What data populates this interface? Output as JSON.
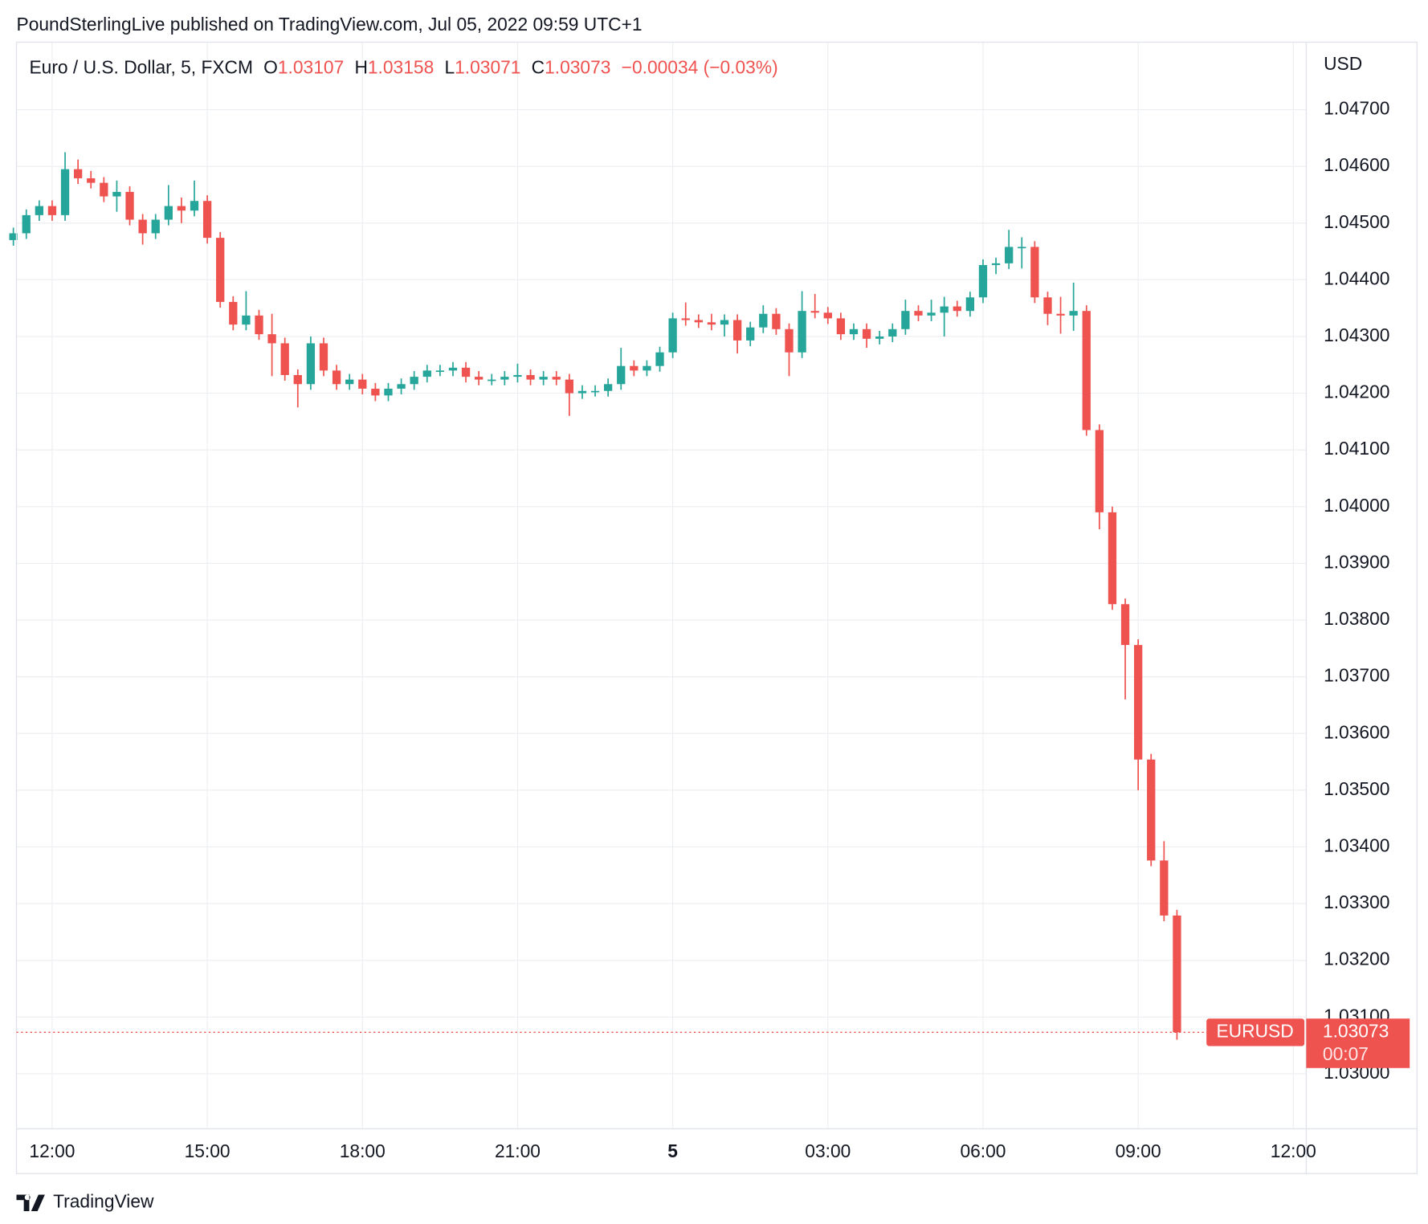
{
  "header": {
    "text": "PoundSterlingLive published on TradingView.com, Jul 05, 2022 09:59 UTC+1"
  },
  "footer": {
    "brand": "TradingView"
  },
  "chart_data": {
    "type": "candlestick",
    "legend": {
      "symbol": "Euro / U.S. Dollar, 5, FXCM",
      "open_label": "O",
      "open": 1.03107,
      "high_label": "H",
      "high": 1.03158,
      "low_label": "L",
      "low": 1.03071,
      "close_label": "C",
      "close": 1.03073,
      "change": "−0.00034 (−0.03%)"
    },
    "y_axis_label": "USD",
    "price_tag": {
      "name": "EURUSD",
      "countdown": "00:07"
    },
    "up_color": "#26a69a",
    "down_color": "#ef5350",
    "grid": true,
    "xlim": [
      11.31,
      36.25
    ],
    "ylim": [
      1.02903,
      1.04819
    ],
    "xticks": [
      {
        "value": 12,
        "label": "12:00"
      },
      {
        "value": 15,
        "label": "15:00"
      },
      {
        "value": 18,
        "label": "18:00"
      },
      {
        "value": 21,
        "label": "21:00"
      },
      {
        "value": 24,
        "label": "5"
      },
      {
        "value": 27,
        "label": "03:00"
      },
      {
        "value": 30,
        "label": "06:00"
      },
      {
        "value": 33,
        "label": "09:00"
      },
      {
        "value": 36,
        "label": "12:00"
      }
    ],
    "yticks": [
      {
        "value": 1.047,
        "label": "1.04700"
      },
      {
        "value": 1.046,
        "label": "1.04600"
      },
      {
        "value": 1.045,
        "label": "1.04500"
      },
      {
        "value": 1.044,
        "label": "1.04400"
      },
      {
        "value": 1.043,
        "label": "1.04300"
      },
      {
        "value": 1.042,
        "label": "1.04200"
      },
      {
        "value": 1.041,
        "label": "1.04100"
      },
      {
        "value": 1.04,
        "label": "1.04000"
      },
      {
        "value": 1.039,
        "label": "1.03900"
      },
      {
        "value": 1.038,
        "label": "1.03800"
      },
      {
        "value": 1.037,
        "label": "1.03700"
      },
      {
        "value": 1.036,
        "label": "1.03600"
      },
      {
        "value": 1.035,
        "label": "1.03500"
      },
      {
        "value": 1.034,
        "label": "1.03400"
      },
      {
        "value": 1.033,
        "label": "1.03300"
      },
      {
        "value": 1.032,
        "label": "1.03200"
      },
      {
        "value": 1.031,
        "label": "1.03100"
      },
      {
        "value": 1.03,
        "label": "1.03000"
      }
    ],
    "x": [
      11.25,
      11.5,
      11.75,
      12,
      12.25,
      12.5,
      12.75,
      13,
      13.25,
      13.5,
      13.75,
      14,
      14.25,
      14.5,
      14.75,
      15,
      15.25,
      15.5,
      15.75,
      16,
      16.25,
      16.5,
      16.75,
      17,
      17.25,
      17.5,
      17.75,
      18,
      18.25,
      18.5,
      18.75,
      19,
      19.25,
      19.5,
      19.75,
      20,
      20.25,
      20.5,
      20.75,
      21,
      21.25,
      21.5,
      21.75,
      22,
      22.25,
      22.5,
      22.75,
      23,
      23.25,
      23.5,
      23.75,
      24,
      24.25,
      24.5,
      24.75,
      25,
      25.25,
      25.5,
      25.75,
      26,
      26.25,
      26.5,
      26.75,
      27,
      27.25,
      27.5,
      27.75,
      28,
      28.25,
      28.5,
      28.75,
      29,
      29.25,
      29.5,
      29.75,
      30,
      30.25,
      30.5,
      30.75,
      31,
      31.25,
      31.5,
      31.75,
      32,
      32.25,
      32.5,
      32.75,
      33,
      33.25,
      33.5,
      33.75
    ],
    "series": [
      {
        "name": "EURUSD",
        "open": [
          1.0447,
          1.04482,
          1.04514,
          1.0453,
          1.04514,
          1.04595,
          1.04579,
          1.04571,
          1.04547,
          1.04555,
          1.04506,
          1.04482,
          1.04506,
          1.0453,
          1.04522,
          1.04539,
          1.04474,
          1.04361,
          1.04321,
          1.04337,
          1.04304,
          1.04288,
          1.04232,
          1.04216,
          1.04288,
          1.0424,
          1.04216,
          1.04224,
          1.04208,
          1.04196,
          1.04208,
          1.04216,
          1.04229,
          1.0424,
          1.0424,
          1.04245,
          1.04229,
          1.04224,
          1.04224,
          1.04229,
          1.04232,
          1.04224,
          1.04229,
          1.04224,
          1.042,
          1.04204,
          1.04204,
          1.04216,
          1.04248,
          1.0424,
          1.04248,
          1.04272,
          1.04332,
          1.04329,
          1.04325,
          1.04321,
          1.04329,
          1.04293,
          1.04316,
          1.0434,
          1.04313,
          1.04272,
          1.04345,
          1.04342,
          1.04332,
          1.04304,
          1.04313,
          1.04296,
          1.043,
          1.04313,
          1.04345,
          1.04337,
          1.04342,
          1.04353,
          1.04345,
          1.04369,
          1.04426,
          1.04429,
          1.04458,
          1.04458,
          1.04369,
          1.0434,
          1.04337,
          1.04345,
          1.04135,
          1.0399,
          1.03828,
          1.03756,
          1.03554,
          1.03376,
          1.03279
        ],
        "high": [
          1.04492,
          1.04524,
          1.0454,
          1.0454,
          1.04625,
          1.04612,
          1.04592,
          1.04581,
          1.04575,
          1.04565,
          1.04516,
          1.04516,
          1.04567,
          1.04545,
          1.04575,
          1.04549,
          1.04484,
          1.04371,
          1.0438,
          1.04347,
          1.0434,
          1.04298,
          1.04242,
          1.043,
          1.04298,
          1.0425,
          1.04234,
          1.04234,
          1.04218,
          1.04218,
          1.04226,
          1.04239,
          1.0425,
          1.0425,
          1.04255,
          1.04255,
          1.04239,
          1.04234,
          1.04239,
          1.04252,
          1.04242,
          1.04239,
          1.04239,
          1.04234,
          1.04214,
          1.04214,
          1.04226,
          1.0428,
          1.04258,
          1.04258,
          1.04282,
          1.04342,
          1.0436,
          1.04339,
          1.0434,
          1.04339,
          1.04339,
          1.04326,
          1.04355,
          1.0435,
          1.04323,
          1.0438,
          1.04375,
          1.04352,
          1.04342,
          1.04323,
          1.04323,
          1.0431,
          1.04323,
          1.04365,
          1.04355,
          1.04365,
          1.0437,
          1.04363,
          1.04379,
          1.04436,
          1.04439,
          1.04488,
          1.04475,
          1.04468,
          1.04379,
          1.0437,
          1.04395,
          1.04355,
          1.04145,
          1.04,
          1.03838,
          1.03766,
          1.03564,
          1.0341,
          1.03289
        ],
        "low": [
          1.0446,
          1.04472,
          1.04504,
          1.04504,
          1.04504,
          1.04569,
          1.04561,
          1.04537,
          1.0452,
          1.04496,
          1.04462,
          1.04472,
          1.04496,
          1.045,
          1.04512,
          1.04464,
          1.04351,
          1.04311,
          1.04311,
          1.04294,
          1.0423,
          1.04222,
          1.04175,
          1.04206,
          1.0423,
          1.04206,
          1.04206,
          1.04198,
          1.04186,
          1.04186,
          1.04198,
          1.04206,
          1.04219,
          1.0423,
          1.0423,
          1.04219,
          1.04214,
          1.04214,
          1.04214,
          1.04219,
          1.04214,
          1.04214,
          1.04214,
          1.0416,
          1.0419,
          1.04194,
          1.04194,
          1.04206,
          1.0423,
          1.0423,
          1.04238,
          1.04262,
          1.04319,
          1.04315,
          1.04311,
          1.043,
          1.0427,
          1.04283,
          1.04306,
          1.04303,
          1.0423,
          1.04262,
          1.04332,
          1.04322,
          1.04294,
          1.04294,
          1.0428,
          1.04286,
          1.0429,
          1.04303,
          1.04327,
          1.04327,
          1.043,
          1.04335,
          1.04335,
          1.04359,
          1.0441,
          1.04419,
          1.0442,
          1.04359,
          1.0432,
          1.04305,
          1.0431,
          1.04125,
          1.0396,
          1.03818,
          1.0366,
          1.035,
          1.03366,
          1.03269,
          1.0306
        ],
        "close": [
          1.04482,
          1.04514,
          1.0453,
          1.04514,
          1.04595,
          1.04579,
          1.04571,
          1.04547,
          1.04555,
          1.04506,
          1.04482,
          1.04506,
          1.0453,
          1.04522,
          1.04539,
          1.04474,
          1.04361,
          1.04321,
          1.04337,
          1.04304,
          1.04288,
          1.04232,
          1.04216,
          1.04288,
          1.0424,
          1.04216,
          1.04224,
          1.04208,
          1.04196,
          1.04208,
          1.04216,
          1.04229,
          1.0424,
          1.0424,
          1.04245,
          1.04229,
          1.04224,
          1.04224,
          1.04229,
          1.04232,
          1.04224,
          1.04229,
          1.04224,
          1.042,
          1.04204,
          1.04204,
          1.04216,
          1.04248,
          1.0424,
          1.04248,
          1.04272,
          1.04332,
          1.04329,
          1.04325,
          1.04321,
          1.04329,
          1.04293,
          1.04316,
          1.0434,
          1.04313,
          1.04272,
          1.04345,
          1.04342,
          1.04332,
          1.04304,
          1.04313,
          1.04296,
          1.043,
          1.04313,
          1.04345,
          1.04337,
          1.04342,
          1.04353,
          1.04345,
          1.04369,
          1.04426,
          1.04429,
          1.04458,
          1.04458,
          1.04369,
          1.0434,
          1.04337,
          1.04345,
          1.04135,
          1.0399,
          1.03828,
          1.03756,
          1.03554,
          1.03376,
          1.03279,
          1.03073
        ]
      }
    ]
  }
}
